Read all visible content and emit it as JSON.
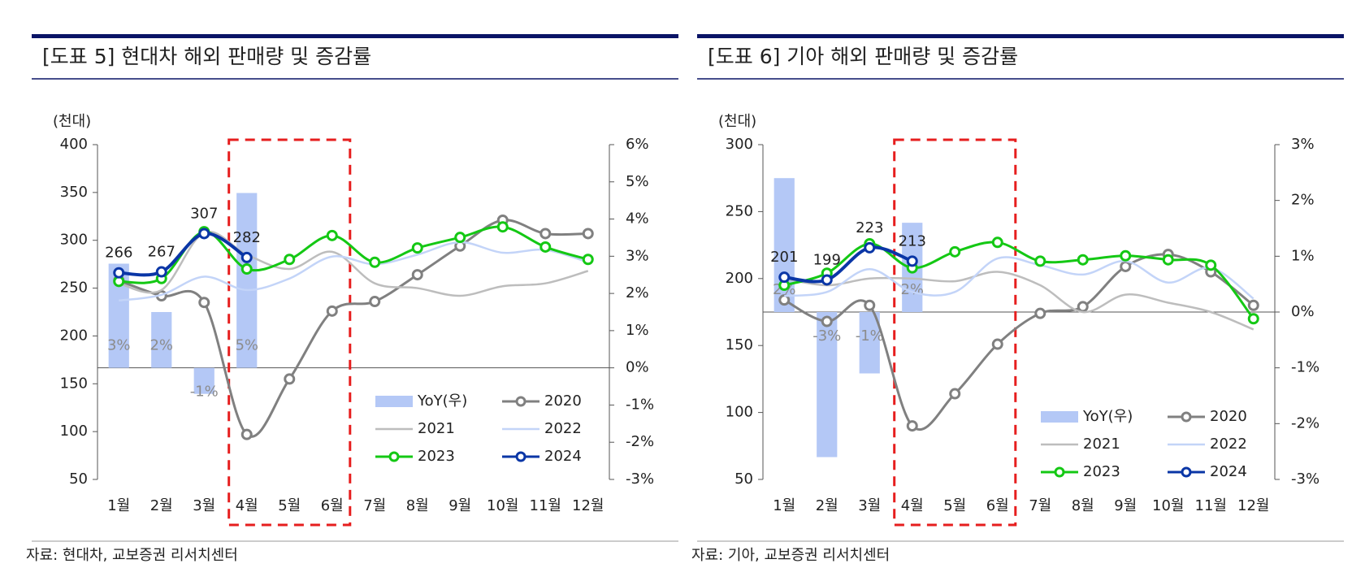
{
  "chart_data": [
    {
      "type": "combo",
      "title": "[도표 5] 현대차 해외 판매량 및 증감률",
      "y_label": "(천대)",
      "source": "자료: 현대차, 교보증권 리서치센터",
      "categories": [
        "1월",
        "2월",
        "3월",
        "4월",
        "5월",
        "6월",
        "7월",
        "8월",
        "9월",
        "10월",
        "11월",
        "12월"
      ],
      "ylim": [
        50,
        400
      ],
      "yticks": [
        50,
        100,
        150,
        200,
        250,
        300,
        350,
        400
      ],
      "y2lim": [
        -3,
        6
      ],
      "y2ticks": [
        {
          "value": -3,
          "label": "-3%"
        },
        {
          "value": -2,
          "label": "-2%"
        },
        {
          "value": -1,
          "label": "-1%"
        },
        {
          "value": 0,
          "label": "0%"
        },
        {
          "value": 1,
          "label": "1%"
        },
        {
          "value": 2,
          "label": "2%"
        },
        {
          "value": 3,
          "label": "3%"
        },
        {
          "value": 4,
          "label": "4%"
        },
        {
          "value": 5,
          "label": "5%"
        },
        {
          "value": 6,
          "label": "6%"
        }
      ],
      "series": [
        {
          "name": "YoY(우)",
          "type": "bar",
          "axis": "y2",
          "color": "#b4c8f6",
          "values": [
            2.8,
            1.5,
            -0.7,
            4.7,
            null,
            null,
            null,
            null,
            null,
            null,
            null,
            null
          ],
          "value_labels": [
            "3%",
            "2%",
            "-1%",
            "5%",
            null,
            null,
            null,
            null,
            null,
            null,
            null,
            null
          ]
        },
        {
          "name": "2020",
          "type": "line",
          "color": "#808080",
          "markers": true,
          "values": [
            258,
            242,
            235,
            97,
            155,
            226,
            236,
            264,
            294,
            321,
            307,
            307
          ]
        },
        {
          "name": "2021",
          "type": "line",
          "color": "#bdbdbd",
          "markers": false,
          "values": [
            255,
            248,
            308,
            285,
            270,
            288,
            255,
            250,
            242,
            252,
            255,
            268
          ]
        },
        {
          "name": "2022",
          "type": "line",
          "color": "#c3d4f8",
          "markers": false,
          "values": [
            237,
            243,
            262,
            248,
            260,
            283,
            275,
            285,
            298,
            287,
            290,
            277
          ]
        },
        {
          "name": "2023",
          "type": "line",
          "color": "#14c814",
          "markers": true,
          "values": [
            257,
            260,
            309,
            270,
            280,
            305,
            277,
            292,
            303,
            314,
            293,
            280
          ]
        },
        {
          "name": "2024",
          "type": "line",
          "color": "#0a36a6",
          "markers": true,
          "show_labels": true,
          "values": [
            266,
            267,
            307,
            282,
            null,
            null,
            null,
            null,
            null,
            null,
            null,
            null
          ]
        }
      ]
    },
    {
      "type": "combo",
      "title": "[도표 6] 기아 해외 판매량 및 증감률",
      "y_label": "(천대)",
      "source": "자료: 기아, 교보증권 리서치센터",
      "categories": [
        "1월",
        "2월",
        "3월",
        "4월",
        "5월",
        "6월",
        "7월",
        "8월",
        "9월",
        "10월",
        "11월",
        "12월"
      ],
      "ylim": [
        50,
        300
      ],
      "yticks": [
        50,
        100,
        150,
        200,
        250,
        300
      ],
      "y2lim": [
        -3,
        3
      ],
      "y2ticks": [
        {
          "value": -3,
          "label": "-3%"
        },
        {
          "value": -2,
          "label": "-2%"
        },
        {
          "value": -1,
          "label": "-1%"
        },
        {
          "value": 0,
          "label": "0%"
        },
        {
          "value": 1,
          "label": "1%"
        },
        {
          "value": 2,
          "label": "2%"
        },
        {
          "value": 3,
          "label": "3%"
        }
      ],
      "series": [
        {
          "name": "YoY(우)",
          "type": "bar",
          "axis": "y2",
          "color": "#b4c8f6",
          "values": [
            2.4,
            -2.6,
            -1.1,
            1.6,
            null,
            null,
            null,
            null,
            null,
            null,
            null,
            null
          ],
          "value_labels": [
            "2%",
            "-3%",
            "-1%",
            "2%",
            null,
            null,
            null,
            null,
            null,
            null,
            null,
            null
          ]
        },
        {
          "name": "2020",
          "type": "line",
          "color": "#808080",
          "markers": true,
          "values": [
            184,
            168,
            180,
            90,
            114,
            151,
            174,
            179,
            209,
            218,
            205,
            180
          ]
        },
        {
          "name": "2021",
          "type": "line",
          "color": "#bdbdbd",
          "markers": false,
          "values": [
            200,
            195,
            200,
            200,
            198,
            205,
            195,
            175,
            188,
            182,
            175,
            162
          ]
        },
        {
          "name": "2022",
          "type": "line",
          "color": "#c3d4f8",
          "markers": false,
          "values": [
            187,
            190,
            207,
            190,
            190,
            215,
            210,
            203,
            213,
            197,
            208,
            185
          ]
        },
        {
          "name": "2023",
          "type": "line",
          "color": "#14c814",
          "markers": true,
          "values": [
            195,
            204,
            226,
            208,
            220,
            227,
            213,
            214,
            217,
            214,
            210,
            170
          ]
        },
        {
          "name": "2024",
          "type": "line",
          "color": "#0a36a6",
          "markers": true,
          "show_labels": true,
          "values": [
            201,
            199,
            223,
            213,
            null,
            null,
            null,
            null,
            null,
            null,
            null,
            null
          ]
        }
      ]
    }
  ]
}
